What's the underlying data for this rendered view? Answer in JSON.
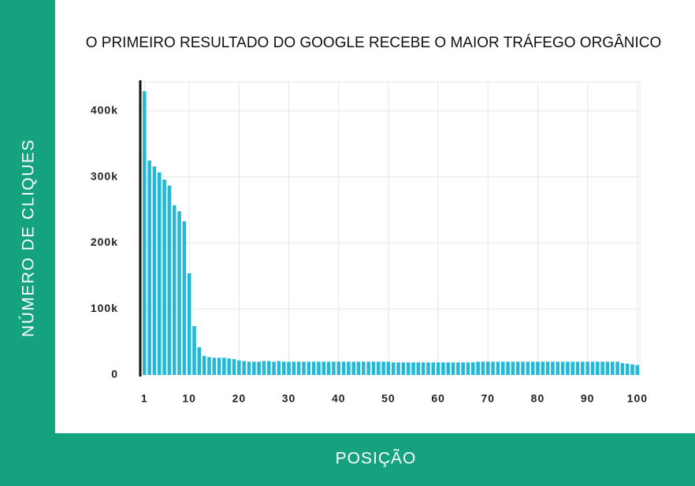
{
  "chart_data": {
    "type": "bar",
    "title": "O PRIMEIRO RESULTADO DO GOOGLE RECEBE O MAIOR TRÁFEGO ORGÂNICO",
    "x_label": "POSIÇÃO",
    "y_label": "NÚMERO DE CLIQUES",
    "color": "#22b9d6",
    "grid": true,
    "x": [
      1,
      2,
      3,
      4,
      5,
      6,
      7,
      8,
      9,
      10,
      11,
      12,
      13,
      14,
      15,
      16,
      17,
      18,
      19,
      20,
      21,
      22,
      23,
      24,
      25,
      26,
      27,
      28,
      29,
      30,
      31,
      32,
      33,
      34,
      35,
      36,
      37,
      38,
      39,
      40,
      41,
      42,
      43,
      44,
      45,
      46,
      47,
      48,
      49,
      50,
      51,
      52,
      53,
      54,
      55,
      56,
      57,
      58,
      59,
      60,
      61,
      62,
      63,
      64,
      65,
      66,
      67,
      68,
      69,
      70,
      71,
      72,
      73,
      74,
      75,
      76,
      77,
      78,
      79,
      80,
      81,
      82,
      83,
      84,
      85,
      86,
      87,
      88,
      89,
      90,
      91,
      92,
      93,
      94,
      95,
      96,
      97,
      98,
      99,
      100
    ],
    "values": [
      430000,
      325000,
      316000,
      307000,
      296000,
      287000,
      257000,
      248000,
      233000,
      154000,
      74000,
      42000,
      29000,
      27000,
      26000,
      26000,
      26000,
      25000,
      24000,
      22000,
      21000,
      20000,
      20000,
      20000,
      21000,
      21000,
      20000,
      21000,
      20000,
      20000,
      20000,
      20000,
      20000,
      20000,
      20000,
      20000,
      20000,
      20000,
      20000,
      20000,
      20000,
      20000,
      20000,
      20000,
      20000,
      20000,
      20000,
      20000,
      20000,
      20000,
      19000,
      19000,
      19000,
      19000,
      19000,
      19000,
      19000,
      19000,
      19000,
      19000,
      19000,
      19000,
      19000,
      19000,
      19000,
      19000,
      19000,
      20000,
      20000,
      20000,
      20000,
      20000,
      20000,
      20000,
      20000,
      20000,
      20000,
      20000,
      20000,
      20000,
      20000,
      20000,
      20000,
      20000,
      20000,
      20000,
      20000,
      20000,
      20000,
      20000,
      20000,
      20000,
      20000,
      20000,
      20000,
      20000,
      18000,
      17000,
      16000,
      15000
    ],
    "xlim": [
      0,
      100.5
    ],
    "xticks": [
      1,
      10,
      20,
      30,
      40,
      50,
      60,
      70,
      80,
      90,
      100
    ],
    "ylim": [
      0,
      444000
    ],
    "yticks": [
      0,
      {
        "value": 100000,
        "label": "100k"
      },
      {
        "value": 200000,
        "label": "200k"
      },
      {
        "value": 300000,
        "label": "300k"
      },
      {
        "value": 400000,
        "label": "400k"
      }
    ]
  }
}
